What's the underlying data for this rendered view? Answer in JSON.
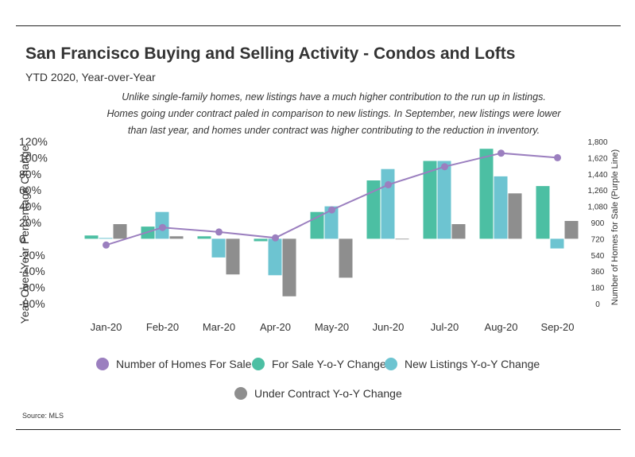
{
  "title": "San Francisco Buying and Selling Activity - Condos and Lofts",
  "subtitle": "YTD 2020, Year-over-Year",
  "annotation_lines": [
    "Unlike single-family homes, new listings have a much higher contribution to the run up in listings.",
    "Homes going under contract paled in comparison to new listings. In September, new listings were lower",
    "than last year, and homes under contract was higher contributing to the reduction in inventory."
  ],
  "source": "Source:  MLS",
  "colors": {
    "line": "#9b7fbf",
    "for_sale": "#4cbfa3",
    "new_listings": "#6dc4d1",
    "under_contract": "#8e8e8e"
  },
  "chart_data": {
    "type": "bar",
    "categories": [
      "Jan-20",
      "Feb-20",
      "Mar-20",
      "Apr-20",
      "May-20",
      "Jun-20",
      "Jul-20",
      "Aug-20",
      "Sep-20"
    ],
    "ylabel": "Year-Over-Year Percentage Change",
    "y2label": "Number of Homes for Sale (Purple Line)",
    "ylim": [
      -80,
      120
    ],
    "y_ticks": [
      "120%",
      "100%",
      "80%",
      "60%",
      "40%",
      "20%",
      "0",
      "-20%",
      "-40%",
      "-60%",
      "-80%"
    ],
    "y2lim": [
      0,
      1800
    ],
    "y2_ticks": [
      "1,800",
      "1,620",
      "1,440",
      "1,260",
      "1,080",
      "900",
      "720",
      "540",
      "360",
      "180",
      "0"
    ],
    "series": [
      {
        "name": "For Sale Y-o-Y Change",
        "type": "bar",
        "values": [
          4,
          15,
          3,
          -3,
          33,
          72,
          96,
          111,
          65
        ]
      },
      {
        "name": "New Listings Y-o-Y Change",
        "type": "bar",
        "values": [
          1,
          33,
          -23,
          -45,
          40,
          86,
          96,
          77,
          -12
        ]
      },
      {
        "name": "Under Contract Y-o-Y Change",
        "type": "bar",
        "values": [
          18,
          3,
          -44,
          -71,
          -48,
          0,
          18,
          56,
          22
        ]
      },
      {
        "name": "Number of Homes For Sale",
        "type": "line",
        "axis": "y2",
        "values": [
          650,
          845,
          795,
          730,
          1040,
          1320,
          1520,
          1670,
          1620
        ]
      }
    ],
    "legend": [
      {
        "name": "Number of Homes For Sale",
        "color": "#9b7fbf"
      },
      {
        "name": "For Sale Y-o-Y Change",
        "color": "#4cbfa3"
      },
      {
        "name": "New Listings Y-o-Y Change",
        "color": "#6dc4d1"
      },
      {
        "name": "Under Contract Y-o-Y Change",
        "color": "#8e8e8e"
      }
    ],
    "legend_position": "bottom"
  }
}
